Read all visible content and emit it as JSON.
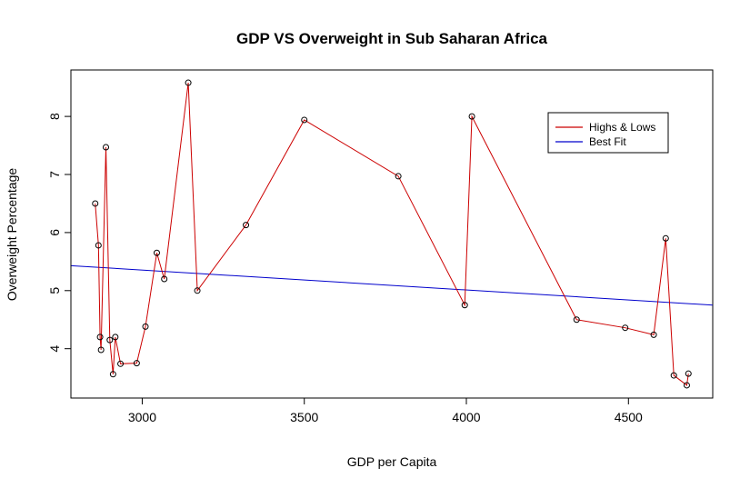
{
  "chart_data": {
    "type": "line",
    "title": "GDP VS Overweight in Sub Saharan Africa",
    "xlabel": "GDP per Capita",
    "ylabel": "Overweight Percentage",
    "xlim": [
      2780,
      4760
    ],
    "ylim": [
      3.15,
      8.8
    ],
    "xticks": [
      3000,
      3500,
      4000,
      4500
    ],
    "yticks": [
      4,
      5,
      6,
      7,
      8
    ],
    "grid": false,
    "legend_position": "top-right",
    "series": [
      {
        "name": "Highs & Lows",
        "color": "#cc0000",
        "marker": "open-circle",
        "x": [
          2855,
          2865,
          2870,
          2873,
          2888,
          2900,
          2910,
          2917,
          2933,
          2983,
          3010,
          3045,
          3068,
          3142,
          3170,
          3320,
          3500,
          3790,
          3995,
          4017,
          4340,
          4490,
          4578,
          4615,
          4640,
          4680,
          4685
        ],
        "y": [
          6.5,
          5.78,
          4.2,
          3.98,
          7.47,
          4.15,
          3.56,
          4.2,
          3.74,
          3.75,
          4.38,
          5.65,
          5.2,
          8.58,
          5.0,
          6.13,
          7.94,
          6.97,
          4.75,
          8.0,
          4.5,
          4.36,
          4.24,
          5.9,
          3.54,
          3.37,
          3.57
        ]
      },
      {
        "name": "Best Fit",
        "color": "#0000cc",
        "marker": "none",
        "x": [
          2780,
          4760
        ],
        "y": [
          5.43,
          4.75
        ]
      }
    ]
  }
}
